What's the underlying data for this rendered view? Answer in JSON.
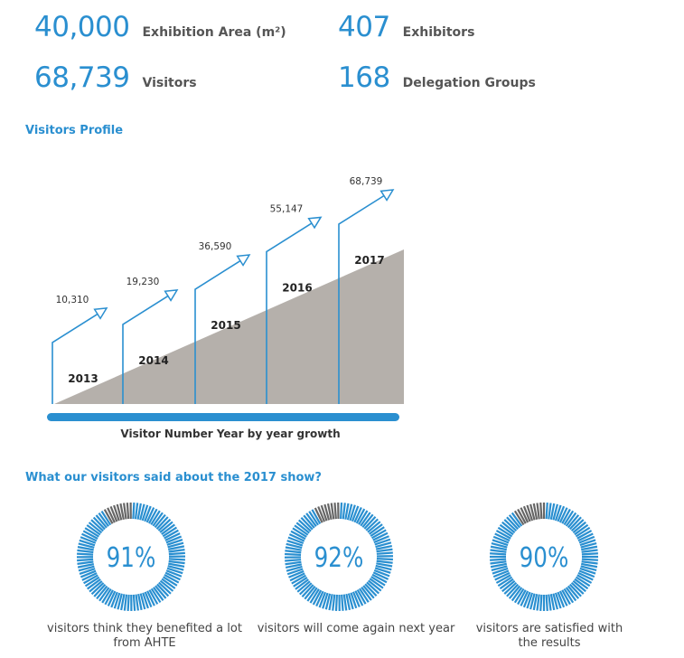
{
  "stats": [
    {
      "value": "40,000",
      "label": "Exhibition Area (m²)"
    },
    {
      "value": "407",
      "label": "Exhibitors"
    },
    {
      "value": "68,739",
      "label": "Visitors"
    },
    {
      "value": "168",
      "label": "Delegation Groups"
    }
  ],
  "visitors_profile_title": "Visitors Profile",
  "survey_title": "What our visitors said about the 2017 show?",
  "colors": {
    "accent": "#2a8fd0",
    "wedge": "#b5b0ab",
    "bar": "#2a8fd0",
    "donut_gray": "#666666"
  },
  "chart_data": [
    {
      "type": "bar",
      "title": "",
      "xlabel": "Visitor Number Year by year growth",
      "ylabel": "",
      "categories": [
        "2013",
        "2014",
        "2015",
        "2016",
        "2017"
      ],
      "values": [
        10310,
        19230,
        36590,
        55147,
        68739
      ],
      "data_labels": [
        "10,310",
        "19,230",
        "36,590",
        "55,147",
        "68,739"
      ]
    },
    {
      "type": "pie",
      "title": "",
      "donuts": [
        {
          "value": 91,
          "label": "91%",
          "caption_lines": [
            "visitors think they benefited a lot",
            "from AHTE"
          ]
        },
        {
          "value": 92,
          "label": "92%",
          "caption_lines": [
            "visitors will come again next year"
          ]
        },
        {
          "value": 90,
          "label": "90%",
          "caption_lines": [
            "visitors are satisfied with",
            "the results"
          ]
        }
      ]
    }
  ]
}
